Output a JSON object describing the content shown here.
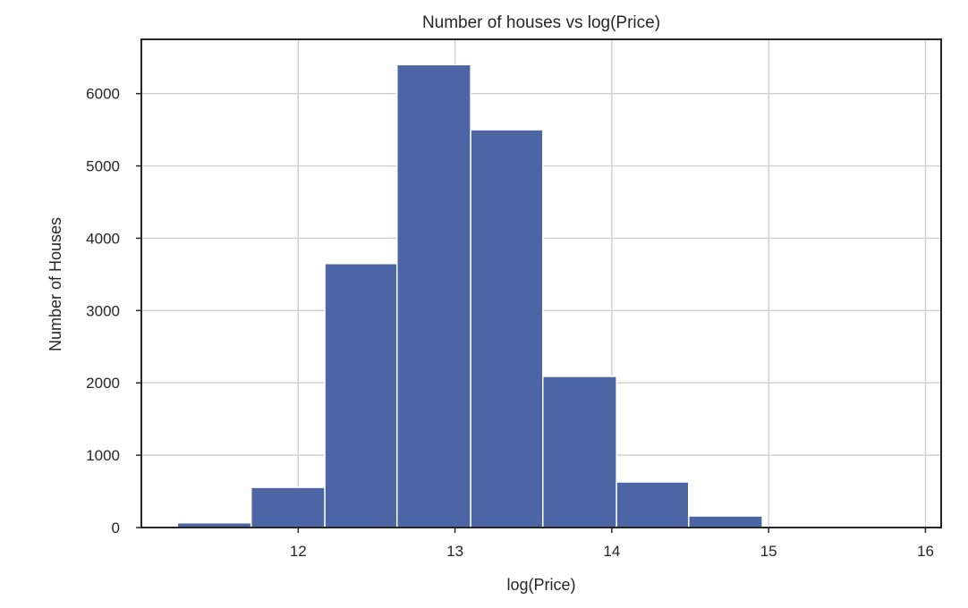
{
  "chart_data": {
    "type": "bar",
    "title": "Number of houses vs log(Price)",
    "xlabel": "log(Price)",
    "ylabel": "Number of Houses",
    "bins": [
      {
        "start": 11.23,
        "end": 11.7,
        "count": 65
      },
      {
        "start": 11.7,
        "end": 12.17,
        "count": 555
      },
      {
        "start": 12.17,
        "end": 12.63,
        "count": 3650
      },
      {
        "start": 12.63,
        "end": 13.1,
        "count": 6400
      },
      {
        "start": 13.1,
        "end": 13.56,
        "count": 5500
      },
      {
        "start": 13.56,
        "end": 14.03,
        "count": 2090
      },
      {
        "start": 14.03,
        "end": 14.49,
        "count": 630
      },
      {
        "start": 14.49,
        "end": 14.96,
        "count": 160
      },
      {
        "start": 14.96,
        "end": 15.42,
        "count": 15
      },
      {
        "start": 15.42,
        "end": 15.89,
        "count": 5
      }
    ],
    "xlim": [
      11.0,
      16.1
    ],
    "ylim": [
      0,
      6750
    ],
    "xticks": [
      12,
      13,
      14,
      15,
      16
    ],
    "yticks": [
      0,
      1000,
      2000,
      3000,
      4000,
      5000,
      6000
    ],
    "grid": true,
    "bar_color": "#4c66a5"
  }
}
